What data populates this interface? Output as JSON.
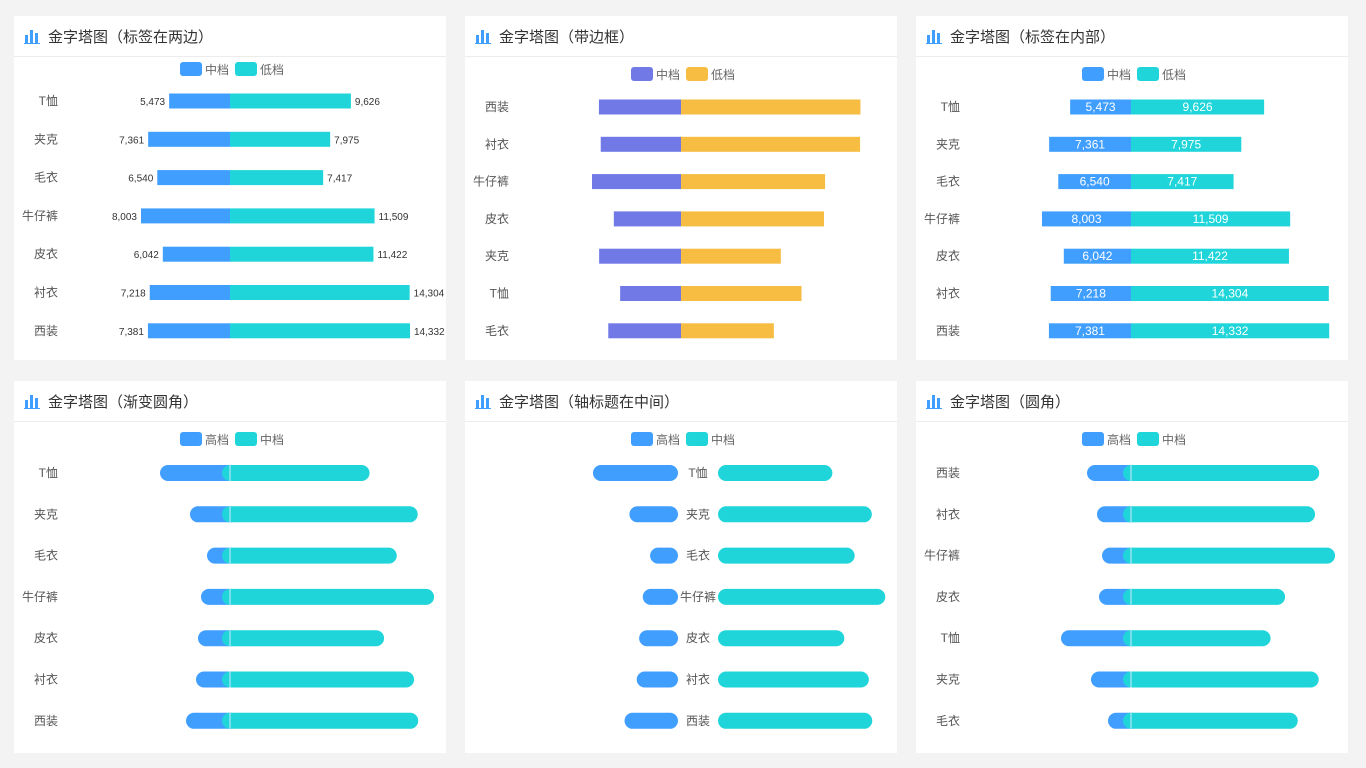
{
  "colors": {
    "blue": "#409eff",
    "cyan": "#1fd5d9",
    "purple": "#7079e6",
    "yellow": "#f6bd42"
  },
  "chart_data": [
    {
      "type": "bar",
      "title": "金字塔图（标签在两边）",
      "legend": [
        "中档",
        "低档"
      ],
      "legend_colors": [
        "#409eff",
        "#1fd5d9"
      ],
      "categories": [
        "T恤",
        "夹克",
        "毛衣",
        "牛仔裤",
        "皮衣",
        "衬衣",
        "西装"
      ],
      "series": [
        {
          "name": "中档",
          "values": [
            5473,
            7361,
            6540,
            8003,
            6042,
            7218,
            7381
          ]
        },
        {
          "name": "低档",
          "values": [
            9626,
            7975,
            7417,
            11509,
            11422,
            14304,
            14332
          ]
        }
      ],
      "value_labels": "outside",
      "value_labels_text": {
        "left": [
          "5,473",
          "7,361",
          "6,540",
          "8,003",
          "6,042",
          "7,218",
          "7,381"
        ],
        "right": [
          "9,626",
          "7,975",
          "7,417",
          "11,509",
          "11,422",
          "14,304",
          "14,332"
        ]
      }
    },
    {
      "type": "bar",
      "title": "金字塔图（带边框）",
      "legend": [
        "中档",
        "低档"
      ],
      "legend_colors": [
        "#7079e6",
        "#f6bd42"
      ],
      "categories": [
        "西装",
        "衬衣",
        "牛仔裤",
        "皮衣",
        "夹克",
        "T恤",
        "毛衣"
      ],
      "series": [
        {
          "name": "中档",
          "values": [
            7381,
            7218,
            8003,
            6042,
            7361,
            5473,
            6540
          ]
        },
        {
          "name": "低档",
          "values": [
            14332,
            14304,
            11509,
            11422,
            7975,
            9626,
            7417
          ]
        }
      ],
      "value_labels": "none"
    },
    {
      "type": "bar",
      "title": "金字塔图（标签在内部）",
      "legend": [
        "中档",
        "低档"
      ],
      "legend_colors": [
        "#409eff",
        "#1fd5d9"
      ],
      "categories": [
        "T恤",
        "夹克",
        "毛衣",
        "牛仔裤",
        "皮衣",
        "衬衣",
        "西装"
      ],
      "series": [
        {
          "name": "中档",
          "values": [
            5473,
            7361,
            6540,
            8003,
            6042,
            7218,
            7381
          ]
        },
        {
          "name": "低档",
          "values": [
            9626,
            7975,
            7417,
            11509,
            11422,
            14304,
            14332
          ]
        }
      ],
      "value_labels": "inside",
      "value_labels_text": {
        "left": [
          "5,473",
          "7,361",
          "6,540",
          "8,003",
          "6,042",
          "7,218",
          "7,381"
        ],
        "right": [
          "9,626",
          "7,975",
          "7,417",
          "11,509",
          "11,422",
          "14,304",
          "14,332"
        ]
      }
    },
    {
      "type": "bar",
      "title": "金字塔图（渐变圆角）",
      "legend": [
        "高档",
        "中档"
      ],
      "legend_colors": [
        "#409eff",
        "#1fd5d9"
      ],
      "categories": [
        "T恤",
        "夹克",
        "毛衣",
        "牛仔裤",
        "皮衣",
        "衬衣",
        "西装"
      ],
      "series": [
        {
          "name": "高档",
          "values": [
            3500,
            2000,
            1150,
            1450,
            1600,
            1700,
            2200
          ]
        },
        {
          "name": "中档",
          "values": [
            5473,
            7361,
            6540,
            8003,
            6042,
            7218,
            7381
          ]
        }
      ],
      "value_labels": "none"
    },
    {
      "type": "bar",
      "title": "金字塔图（轴标题在中间）",
      "legend": [
        "高档",
        "中档"
      ],
      "legend_colors": [
        "#409eff",
        "#1fd5d9"
      ],
      "categories": [
        "T恤",
        "夹克",
        "毛衣",
        "牛仔裤",
        "皮衣",
        "衬衣",
        "西装"
      ],
      "series": [
        {
          "name": "高档",
          "values": [
            3500,
            2000,
            1150,
            1450,
            1600,
            1700,
            2200
          ]
        },
        {
          "name": "中档",
          "values": [
            5473,
            7361,
            6540,
            8003,
            6042,
            7218,
            7381
          ]
        }
      ],
      "value_labels": "none"
    },
    {
      "type": "bar",
      "title": "金字塔图（圆角）",
      "legend": [
        "高档",
        "中档"
      ],
      "legend_colors": [
        "#409eff",
        "#1fd5d9"
      ],
      "categories": [
        "西装",
        "衬衣",
        "牛仔裤",
        "皮衣",
        "T恤",
        "夹克",
        "毛衣"
      ],
      "series": [
        {
          "name": "高档",
          "values": [
            2200,
            1700,
            1450,
            1600,
            3500,
            2000,
            1150
          ]
        },
        {
          "name": "中档",
          "values": [
            7381,
            7218,
            8003,
            6042,
            5473,
            7361,
            6540
          ]
        }
      ],
      "value_labels": "none"
    }
  ]
}
